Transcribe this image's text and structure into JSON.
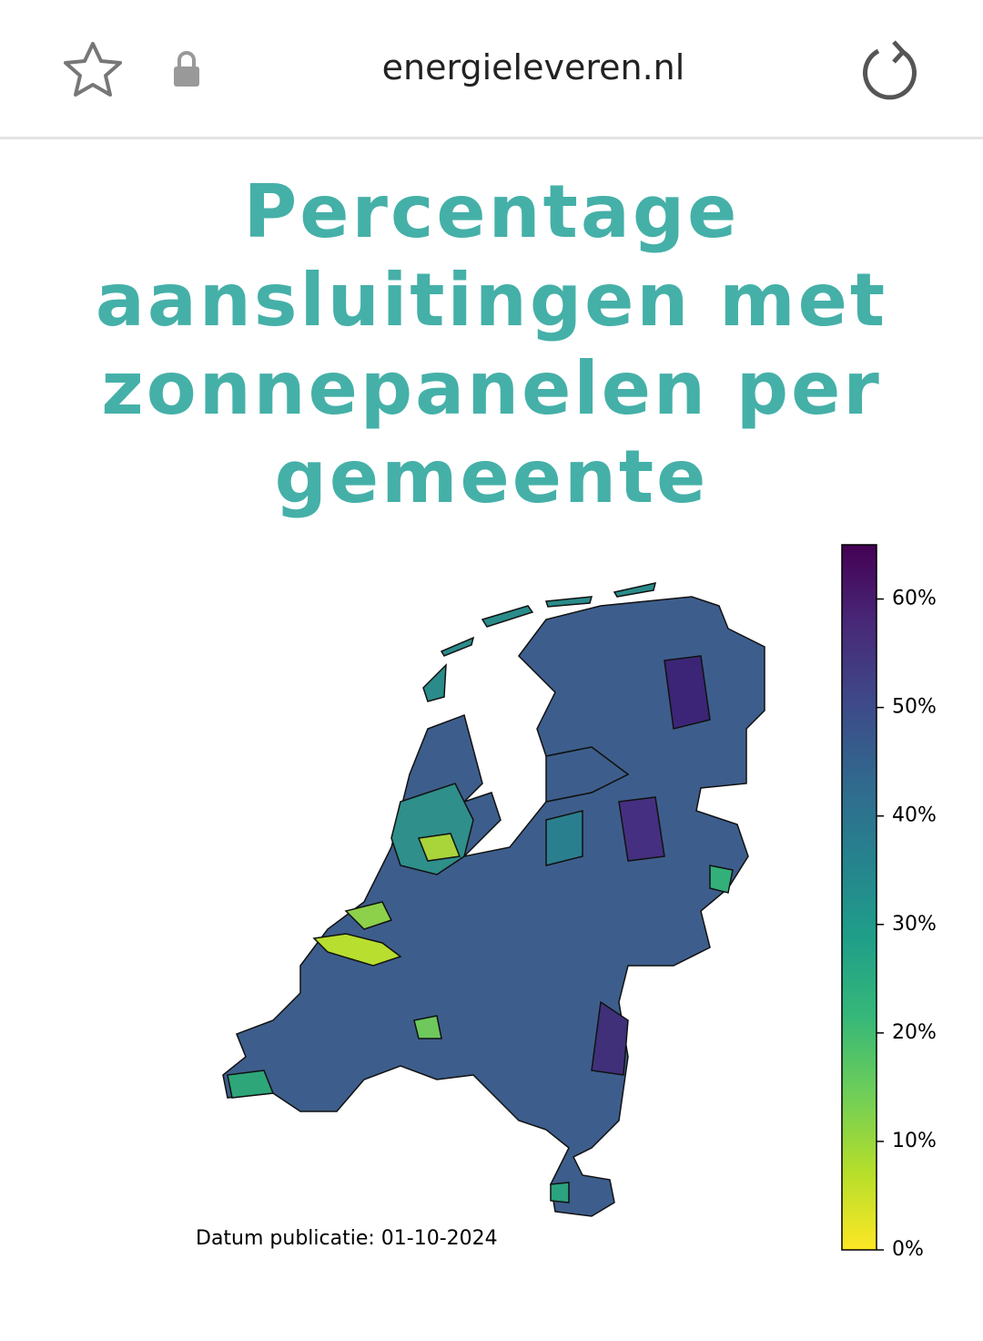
{
  "browser": {
    "url": "energieleveren.nl"
  },
  "chart_data": {
    "type": "choropleth",
    "title": "Percentage aansluitingen met zonnepanelen per gemeente",
    "note": "Datum publicatie: 01-10-2024",
    "colorscale": "viridis",
    "colorscale_reversed": true,
    "ylim": [
      0,
      65
    ],
    "yticks": [
      {
        "value": 0,
        "label": "0%"
      },
      {
        "value": 10,
        "label": "10%"
      },
      {
        "value": 20,
        "label": "20%"
      },
      {
        "value": 30,
        "label": "30%"
      },
      {
        "value": 40,
        "label": "40%"
      },
      {
        "value": 50,
        "label": "50%"
      },
      {
        "value": 60,
        "label": "60%"
      }
    ]
  }
}
